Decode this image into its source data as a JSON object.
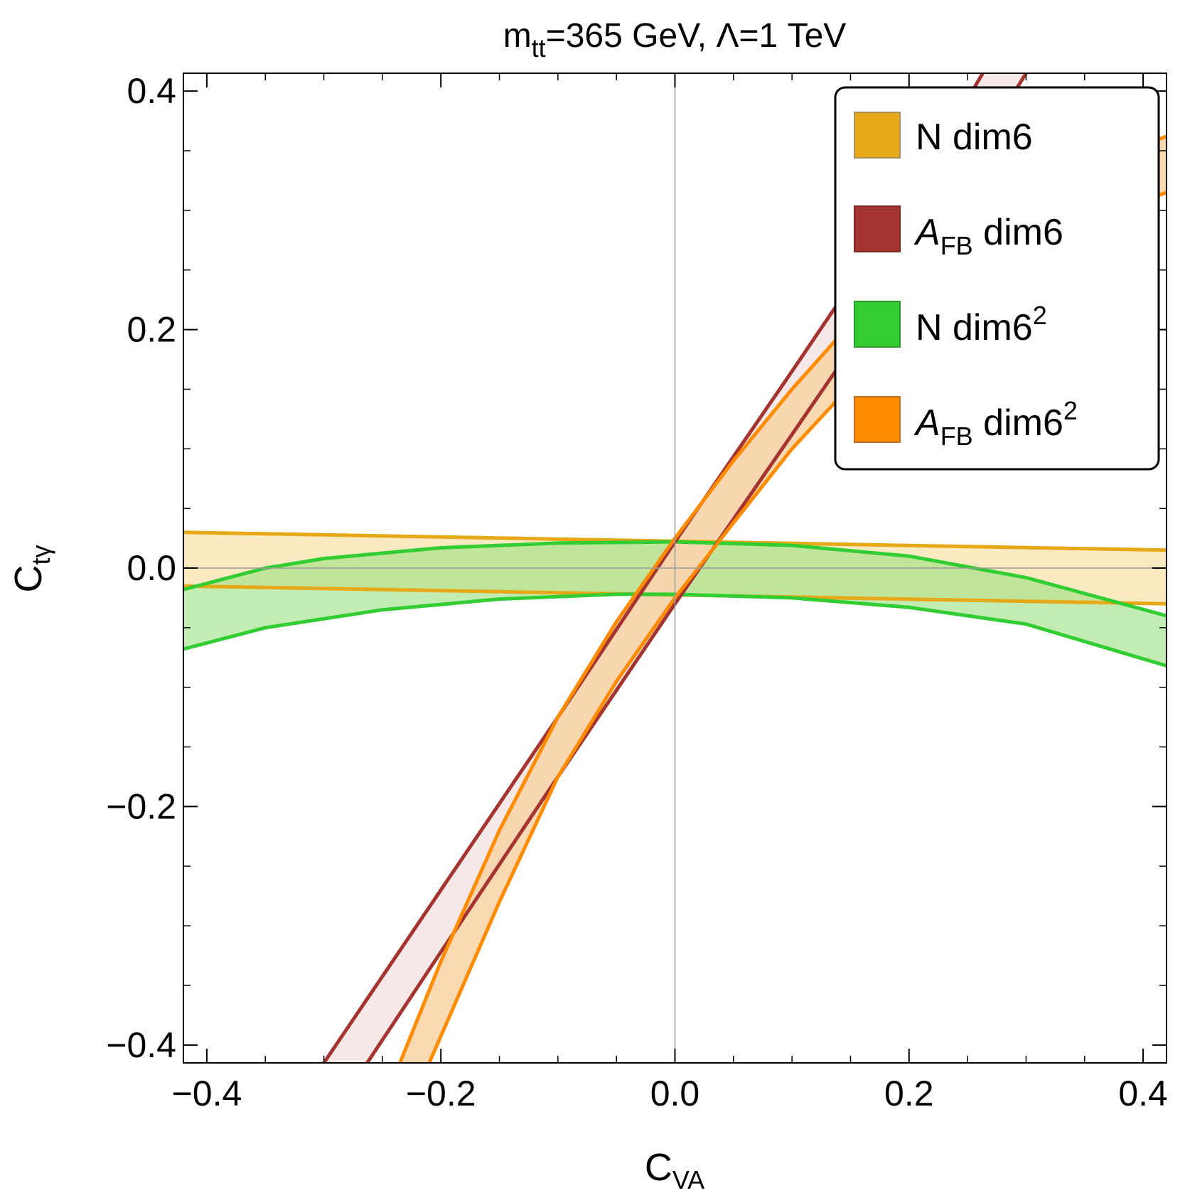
{
  "chart_data": {
    "type": "contour-band",
    "title": {
      "m_symbol": "m",
      "m_sub": "tt",
      "after_m": "=365 GeV, ",
      "lambda_symbol": "Λ",
      "after_lambda": "=1 TeV"
    },
    "xlabel": {
      "main": "C",
      "sub": "VA"
    },
    "ylabel": {
      "main": "C",
      "sub": "tγ"
    },
    "xlim": [
      -0.42,
      0.42
    ],
    "ylim": [
      -0.415,
      0.415
    ],
    "x_ticks": [
      {
        "v": -0.4,
        "label": "−0.4"
      },
      {
        "v": -0.2,
        "label": "−0.2"
      },
      {
        "v": 0.0,
        "label": "0.0"
      },
      {
        "v": 0.2,
        "label": "0.2"
      },
      {
        "v": 0.4,
        "label": "0.4"
      }
    ],
    "y_ticks": [
      {
        "v": -0.4,
        "label": "−0.4"
      },
      {
        "v": -0.2,
        "label": "−0.2"
      },
      {
        "v": 0.0,
        "label": "0.0"
      },
      {
        "v": 0.2,
        "label": "0.2"
      },
      {
        "v": 0.4,
        "label": "0.4"
      }
    ],
    "minor_step": 0.05,
    "legend": [
      {
        "name": "N dim6",
        "text": "N dim6",
        "color": "#E6A817"
      },
      {
        "name": "A_FB dim6",
        "italic": "A",
        "sub": "FB",
        "text": " dim6",
        "color": "#A3342F"
      },
      {
        "name": "N dim6^2",
        "text": "N  dim6",
        "sup": "2",
        "color": "#32CD32"
      },
      {
        "name": "A_FB dim6^2",
        "italic": "A",
        "sub": "FB",
        "text": "  dim6",
        "sup": "2",
        "color": "#FF8C00"
      }
    ],
    "series": [
      {
        "name": "N dim6",
        "edge_color": "#E6A817",
        "fill_color": "#F9E6B6",
        "upper": [
          [
            -0.42,
            0.03
          ],
          [
            0.42,
            0.015
          ]
        ],
        "lower": [
          [
            -0.42,
            -0.015
          ],
          [
            0.42,
            -0.03
          ]
        ]
      },
      {
        "name": "N dim6^2",
        "edge_color": "#32CD32",
        "fill_color": "#9ADF7E",
        "fill_opacity": 0.6,
        "upper": [
          [
            -0.42,
            -0.018
          ],
          [
            -0.35,
            0.0
          ],
          [
            -0.3,
            0.008
          ],
          [
            -0.2,
            0.017
          ],
          [
            -0.1,
            0.021
          ],
          [
            0.0,
            0.022
          ],
          [
            0.1,
            0.019
          ],
          [
            0.2,
            0.01
          ],
          [
            0.3,
            -0.008
          ],
          [
            0.42,
            -0.04
          ]
        ],
        "lower": [
          [
            -0.42,
            -0.068
          ],
          [
            -0.35,
            -0.05
          ],
          [
            -0.25,
            -0.035
          ],
          [
            -0.15,
            -0.026
          ],
          [
            -0.05,
            -0.022
          ],
          [
            0.0,
            -0.022
          ],
          [
            0.1,
            -0.025
          ],
          [
            0.2,
            -0.033
          ],
          [
            0.3,
            -0.047
          ],
          [
            0.42,
            -0.082
          ]
        ]
      },
      {
        "name": "A_FB dim6",
        "edge_color": "#A3342F",
        "fill_color": "#F3E4E2",
        "upper": [
          [
            -0.3,
            -0.415
          ],
          [
            -0.2,
            -0.27
          ],
          [
            -0.1,
            -0.125
          ],
          [
            0.0,
            0.022
          ],
          [
            0.1,
            0.165
          ],
          [
            0.2,
            0.31
          ],
          [
            0.263,
            0.415
          ]
        ],
        "lower": [
          [
            -0.263,
            -0.415
          ],
          [
            -0.2,
            -0.322
          ],
          [
            -0.1,
            -0.175
          ],
          [
            0.0,
            -0.03
          ],
          [
            0.1,
            0.112
          ],
          [
            0.2,
            0.255
          ],
          [
            0.3,
            0.415
          ]
        ]
      },
      {
        "name": "A_FB dim6^2",
        "edge_color": "#FF8C00",
        "fill_color": "#F8D2A5",
        "upper": [
          [
            -0.235,
            -0.415
          ],
          [
            -0.2,
            -0.33
          ],
          [
            -0.15,
            -0.22
          ],
          [
            -0.1,
            -0.125
          ],
          [
            -0.05,
            -0.045
          ],
          [
            0.0,
            0.025
          ],
          [
            0.05,
            0.09
          ],
          [
            0.1,
            0.15
          ],
          [
            0.15,
            0.205
          ],
          [
            0.2,
            0.25
          ],
          [
            0.25,
            0.285
          ],
          [
            0.3,
            0.315
          ],
          [
            0.35,
            0.338
          ],
          [
            0.4,
            0.355
          ],
          [
            0.42,
            0.362
          ]
        ],
        "lower": [
          [
            -0.21,
            -0.415
          ],
          [
            -0.15,
            -0.28
          ],
          [
            -0.1,
            -0.175
          ],
          [
            -0.05,
            -0.095
          ],
          [
            0.0,
            -0.025
          ],
          [
            0.05,
            0.038
          ],
          [
            0.1,
            0.1
          ],
          [
            0.15,
            0.153
          ],
          [
            0.2,
            0.2
          ],
          [
            0.25,
            0.238
          ],
          [
            0.3,
            0.268
          ],
          [
            0.35,
            0.29
          ],
          [
            0.4,
            0.308
          ],
          [
            0.42,
            0.315
          ]
        ]
      }
    ]
  }
}
